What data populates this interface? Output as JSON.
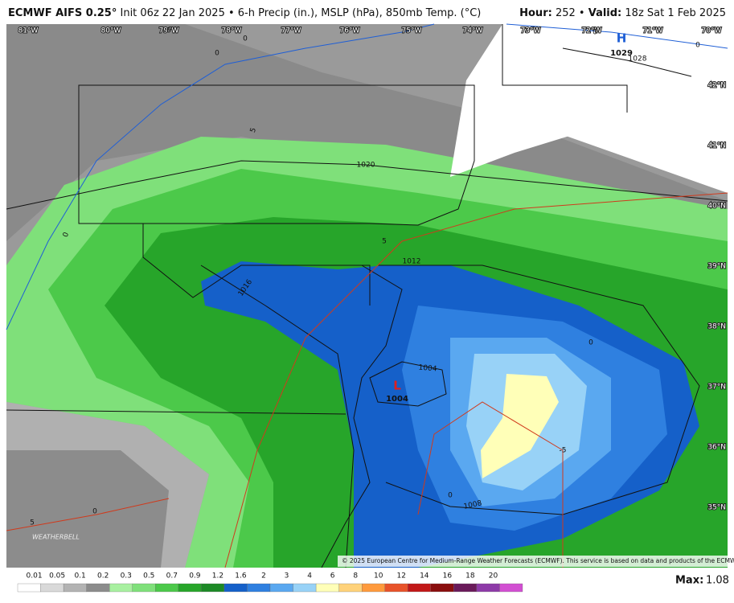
{
  "header": {
    "title": "ECMWF AIFS 0.25°",
    "subtitle": "Init 06z 22 Jan 2025 • 6-h Precip (in.), MSLP (hPa), 850mb Temp. (°C)",
    "hour_label": "Hour:",
    "hour": "252 •",
    "valid_label": "Valid:",
    "valid": "18z Sat 1 Feb 2025"
  },
  "map": {
    "longitudes": [
      "81°W",
      "80°W",
      "79°W",
      "78°W",
      "77°W",
      "76°W",
      "75°W",
      "74°W",
      "73°W",
      "72°W",
      "71°W",
      "70°W"
    ],
    "latitudes": [
      "42°N",
      "41°N",
      "40°N",
      "39°N",
      "38°N",
      "37°N",
      "36°N",
      "35°N"
    ],
    "contour_labels": [
      "1020",
      "1016",
      "1012",
      "1008",
      "1004",
      "1028",
      "0",
      "0",
      "0",
      "5",
      "0",
      "0",
      "0",
      "5",
      "0",
      "0",
      "-5",
      "5",
      "0"
    ],
    "centers": [
      {
        "symbol": "H",
        "pressure": "1029"
      },
      {
        "symbol": "L",
        "pressure": "1004"
      }
    ],
    "logo": "WEATHERBELL",
    "copyright": "© 2025 European Centre for Medium-Range Weather Forecasts (ECMWF). This service is based on data and products of the ECMWF."
  },
  "colorbar": {
    "labels": [
      "0.01",
      "0.05",
      "0.1",
      "0.2",
      "0.3",
      "0.5",
      "0.7",
      "0.9",
      "1.2",
      "1.6",
      "2",
      "3",
      "4",
      "6",
      "8",
      "10",
      "12",
      "14",
      "16",
      "18",
      "20"
    ],
    "colors": [
      "#ffffff",
      "#d9d9d9",
      "#b3b3b3",
      "#8c8c8c",
      "#a8f0a0",
      "#7fe07a",
      "#4cc94a",
      "#27a52a",
      "#1d8a26",
      "#1560c9",
      "#2f80e0",
      "#5aa8f0",
      "#98d2f7",
      "#ffffb8",
      "#ffd27a",
      "#ff9a3c",
      "#e8532a",
      "#c21818",
      "#8a0e0e",
      "#6a1a5a",
      "#8e3aa8",
      "#d24fd2"
    ],
    "max_label": "Max:",
    "max": "1.08"
  }
}
